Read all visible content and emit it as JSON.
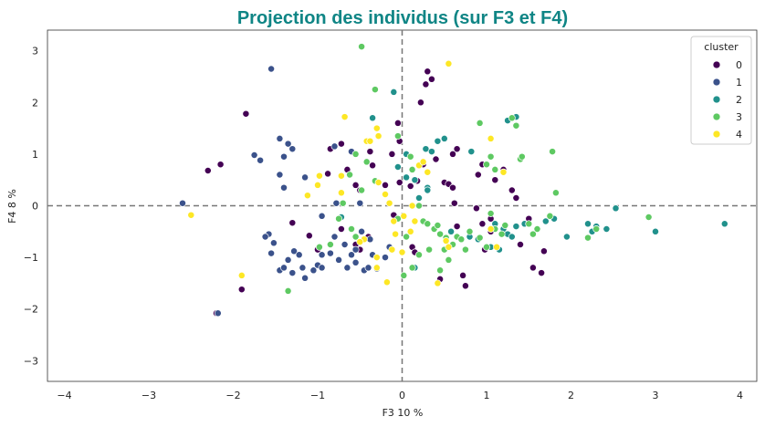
{
  "chart_data": {
    "type": "scatter",
    "title": "Projection des individus (sur F3 et F4)",
    "xlabel": "F3 10 %",
    "ylabel": "F4 8 %",
    "xlim": [
      -4.2,
      4.2
    ],
    "ylim": [
      -3.4,
      3.4
    ],
    "xticks": [
      "−4",
      "−3",
      "−2",
      "−1",
      "0",
      "1",
      "2",
      "3",
      "4"
    ],
    "yticks": [
      "−3",
      "−2",
      "−1",
      "0",
      "1",
      "2",
      "3"
    ],
    "reference_lines": {
      "x": 0,
      "y": 0,
      "style": "dashed"
    },
    "grid": false,
    "legend": {
      "title": "cluster",
      "position": "top-right"
    },
    "series": [
      {
        "name": "0",
        "color": "#440154",
        "points": [
          [
            -2.3,
            0.68
          ],
          [
            -2.15,
            0.8
          ],
          [
            -1.85,
            1.78
          ],
          [
            -2.2,
            -2.08
          ],
          [
            -1.9,
            -1.62
          ],
          [
            -1.3,
            -0.33
          ],
          [
            -1.0,
            -0.85
          ],
          [
            -0.88,
            0.62
          ],
          [
            -0.85,
            1.1
          ],
          [
            -0.72,
            1.2
          ],
          [
            -0.65,
            0.7
          ],
          [
            -0.55,
            0.4
          ],
          [
            -0.55,
            -0.75
          ],
          [
            -0.5,
            -0.85
          ],
          [
            -0.5,
            0.3
          ],
          [
            -0.4,
            -0.6
          ],
          [
            -0.38,
            1.05
          ],
          [
            -0.35,
            0.78
          ],
          [
            -0.2,
            0.4
          ],
          [
            -0.12,
            1.0
          ],
          [
            -0.05,
            1.6
          ],
          [
            -0.03,
            1.25
          ],
          [
            0.1,
            0.38
          ],
          [
            0.18,
            0.48
          ],
          [
            0.22,
            2.0
          ],
          [
            0.28,
            2.35
          ],
          [
            0.3,
            2.6
          ],
          [
            0.35,
            2.45
          ],
          [
            0.12,
            -0.8
          ],
          [
            0.15,
            -0.9
          ],
          [
            0.25,
            0.8
          ],
          [
            0.4,
            0.9
          ],
          [
            0.5,
            0.45
          ],
          [
            0.55,
            0.42
          ],
          [
            0.6,
            0.35
          ],
          [
            0.6,
            1.0
          ],
          [
            0.65,
            1.1
          ],
          [
            0.62,
            0.05
          ],
          [
            0.45,
            -1.42
          ],
          [
            0.72,
            -1.35
          ],
          [
            0.75,
            -1.55
          ],
          [
            1.5,
            -0.25
          ],
          [
            1.65,
            -1.3
          ],
          [
            1.68,
            -0.88
          ],
          [
            1.1,
            0.5
          ],
          [
            1.2,
            0.7
          ],
          [
            1.3,
            0.3
          ],
          [
            1.35,
            0.15
          ],
          [
            1.4,
            -0.75
          ],
          [
            1.55,
            -1.2
          ],
          [
            0.9,
            0.6
          ],
          [
            0.95,
            0.8
          ],
          [
            1.05,
            -0.25
          ],
          [
            1.05,
            -0.5
          ],
          [
            0.65,
            -0.4
          ],
          [
            0.8,
            -0.6
          ],
          [
            0.88,
            -0.05
          ],
          [
            0.95,
            -0.35
          ],
          [
            0.98,
            -0.85
          ],
          [
            -0.03,
            0.45
          ],
          [
            -0.1,
            -0.18
          ],
          [
            -0.72,
            -0.45
          ],
          [
            -1.1,
            -0.58
          ]
        ]
      },
      {
        "name": "1",
        "color": "#3b528b",
        "points": [
          [
            -2.18,
            -2.08
          ],
          [
            -1.55,
            2.65
          ],
          [
            -1.75,
            0.98
          ],
          [
            -1.68,
            0.88
          ],
          [
            -1.45,
            1.3
          ],
          [
            -1.35,
            1.2
          ],
          [
            -1.3,
            1.1
          ],
          [
            -1.4,
            0.95
          ],
          [
            -1.45,
            0.6
          ],
          [
            -1.4,
            0.35
          ],
          [
            -1.15,
            0.55
          ],
          [
            -0.78,
            0.05
          ],
          [
            -0.5,
            0.05
          ],
          [
            -0.6,
            1.05
          ],
          [
            -0.8,
            1.15
          ],
          [
            -1.58,
            -0.55
          ],
          [
            -1.52,
            -0.72
          ],
          [
            -1.55,
            -0.92
          ],
          [
            -1.45,
            -1.25
          ],
          [
            -1.4,
            -1.2
          ],
          [
            -1.35,
            -1.05
          ],
          [
            -1.3,
            -1.3
          ],
          [
            -1.28,
            -0.88
          ],
          [
            -1.22,
            -0.95
          ],
          [
            -1.18,
            -1.2
          ],
          [
            -1.15,
            -1.4
          ],
          [
            -1.05,
            -1.25
          ],
          [
            -1.0,
            -1.15
          ],
          [
            -0.95,
            -1.2
          ],
          [
            -0.85,
            -0.92
          ],
          [
            -0.75,
            -1.05
          ],
          [
            -0.68,
            -0.75
          ],
          [
            -0.6,
            -0.95
          ],
          [
            -0.55,
            -0.85
          ],
          [
            -0.45,
            -1.25
          ],
          [
            -0.4,
            -1.2
          ],
          [
            -0.35,
            -0.95
          ],
          [
            -0.3,
            -1.22
          ],
          [
            -0.2,
            -1.0
          ],
          [
            -0.15,
            -0.8
          ],
          [
            -0.48,
            -0.5
          ],
          [
            -0.38,
            -0.65
          ],
          [
            -0.55,
            -1.1
          ],
          [
            -2.6,
            0.05
          ],
          [
            -0.95,
            -0.2
          ],
          [
            -0.8,
            -0.6
          ],
          [
            -0.95,
            -0.95
          ],
          [
            -1.62,
            -0.6
          ],
          [
            -0.65,
            -1.2
          ]
        ]
      },
      {
        "name": "2",
        "color": "#21918c",
        "points": [
          [
            -0.1,
            2.2
          ],
          [
            -0.35,
            1.7
          ],
          [
            0.05,
            1.0
          ],
          [
            0.15,
            0.5
          ],
          [
            0.28,
            1.1
          ],
          [
            0.35,
            1.05
          ],
          [
            0.42,
            1.25
          ],
          [
            0.5,
            1.3
          ],
          [
            -0.05,
            0.75
          ],
          [
            0.05,
            0.55
          ],
          [
            0.3,
            0.35
          ],
          [
            0.2,
            0.15
          ],
          [
            0.58,
            -0.5
          ],
          [
            0.82,
            1.05
          ],
          [
            1.25,
            1.65
          ],
          [
            1.35,
            1.72
          ],
          [
            1.1,
            -0.35
          ],
          [
            1.2,
            -0.45
          ],
          [
            1.25,
            -0.55
          ],
          [
            1.3,
            -0.6
          ],
          [
            1.35,
            -0.4
          ],
          [
            1.45,
            -0.35
          ],
          [
            1.6,
            -0.45
          ],
          [
            1.7,
            -0.3
          ],
          [
            1.8,
            -0.25
          ],
          [
            1.95,
            -0.6
          ],
          [
            2.2,
            -0.35
          ],
          [
            2.25,
            -0.5
          ],
          [
            2.3,
            -0.4
          ],
          [
            2.42,
            -0.45
          ],
          [
            2.53,
            -0.05
          ],
          [
            3.0,
            -0.5
          ],
          [
            3.82,
            -0.35
          ],
          [
            0.8,
            -0.6
          ],
          [
            0.9,
            -0.65
          ],
          [
            1.05,
            -0.8
          ],
          [
            1.15,
            -0.85
          ],
          [
            -0.72,
            -0.22
          ],
          [
            0.15,
            -1.2
          ],
          [
            0.3,
            0.3
          ]
        ]
      },
      {
        "name": "3",
        "color": "#5ec962",
        "points": [
          [
            -0.48,
            3.08
          ],
          [
            -0.32,
            2.25
          ],
          [
            -0.32,
            0.48
          ],
          [
            -0.42,
            0.85
          ],
          [
            -0.55,
            1.0
          ],
          [
            -0.62,
            0.6
          ],
          [
            -0.48,
            0.3
          ],
          [
            -0.7,
            0.05
          ],
          [
            -0.75,
            -0.25
          ],
          [
            -0.6,
            -0.45
          ],
          [
            -0.55,
            -0.6
          ],
          [
            -0.05,
            1.35
          ],
          [
            0.1,
            0.95
          ],
          [
            0.12,
            0.7
          ],
          [
            0.2,
            0.0
          ],
          [
            0.25,
            -0.3
          ],
          [
            0.3,
            -0.35
          ],
          [
            0.38,
            -0.45
          ],
          [
            0.42,
            -0.38
          ],
          [
            0.45,
            -0.55
          ],
          [
            0.5,
            -0.85
          ],
          [
            0.52,
            -0.62
          ],
          [
            0.55,
            -1.05
          ],
          [
            0.32,
            -0.85
          ],
          [
            0.2,
            -0.95
          ],
          [
            0.12,
            -1.2
          ],
          [
            0.05,
            -0.6
          ],
          [
            -0.05,
            -0.25
          ],
          [
            0.65,
            -0.6
          ],
          [
            0.7,
            -0.65
          ],
          [
            0.75,
            -0.85
          ],
          [
            0.8,
            -0.5
          ],
          [
            0.92,
            -0.62
          ],
          [
            0.92,
            1.6
          ],
          [
            1.0,
            0.8
          ],
          [
            1.05,
            0.95
          ],
          [
            1.1,
            0.7
          ],
          [
            1.18,
            -0.55
          ],
          [
            1.22,
            -0.38
          ],
          [
            1.3,
            1.7
          ],
          [
            1.35,
            1.55
          ],
          [
            1.4,
            0.9
          ],
          [
            1.42,
            0.95
          ],
          [
            1.5,
            -0.35
          ],
          [
            1.55,
            -0.55
          ],
          [
            1.6,
            -0.45
          ],
          [
            1.75,
            -0.2
          ],
          [
            1.78,
            1.05
          ],
          [
            1.82,
            0.25
          ],
          [
            2.2,
            -0.62
          ],
          [
            2.3,
            -0.45
          ],
          [
            2.92,
            -0.22
          ],
          [
            1.0,
            -0.8
          ],
          [
            1.05,
            -0.15
          ],
          [
            1.1,
            -0.45
          ],
          [
            -1.35,
            -1.65
          ],
          [
            -0.98,
            -0.8
          ],
          [
            -0.85,
            -0.75
          ],
          [
            0.45,
            -1.25
          ],
          [
            0.6,
            -0.75
          ],
          [
            0.02,
            -1.35
          ]
        ]
      },
      {
        "name": "4",
        "color": "#fde725",
        "points": [
          [
            -2.5,
            -0.18
          ],
          [
            -1.9,
            -1.35
          ],
          [
            -1.12,
            0.2
          ],
          [
            -1.0,
            0.4
          ],
          [
            -0.98,
            0.58
          ],
          [
            -0.72,
            0.58
          ],
          [
            -0.72,
            0.25
          ],
          [
            -0.68,
            1.72
          ],
          [
            -0.42,
            1.25
          ],
          [
            -0.38,
            1.25
          ],
          [
            -0.3,
            1.5
          ],
          [
            -0.28,
            1.35
          ],
          [
            -0.28,
            0.45
          ],
          [
            -0.2,
            0.22
          ],
          [
            -0.15,
            0.05
          ],
          [
            -0.1,
            -0.3
          ],
          [
            -0.08,
            -0.55
          ],
          [
            -0.12,
            -0.85
          ],
          [
            -0.18,
            -1.48
          ],
          [
            -0.3,
            -1.0
          ],
          [
            -0.3,
            -1.2
          ],
          [
            -0.45,
            -0.65
          ],
          [
            0.1,
            -0.5
          ],
          [
            0.15,
            -0.3
          ],
          [
            0.12,
            0.0
          ],
          [
            0.2,
            0.78
          ],
          [
            0.25,
            0.85
          ],
          [
            0.3,
            0.65
          ],
          [
            0.42,
            -1.5
          ],
          [
            0.52,
            -0.68
          ],
          [
            0.55,
            -0.8
          ],
          [
            0.55,
            2.75
          ],
          [
            1.05,
            1.3
          ],
          [
            1.2,
            0.65
          ],
          [
            1.05,
            -0.45
          ],
          [
            1.12,
            -0.8
          ],
          [
            -0.5,
            -0.7
          ],
          [
            0.02,
            -0.2
          ],
          [
            0.0,
            -0.9
          ]
        ]
      }
    ]
  }
}
